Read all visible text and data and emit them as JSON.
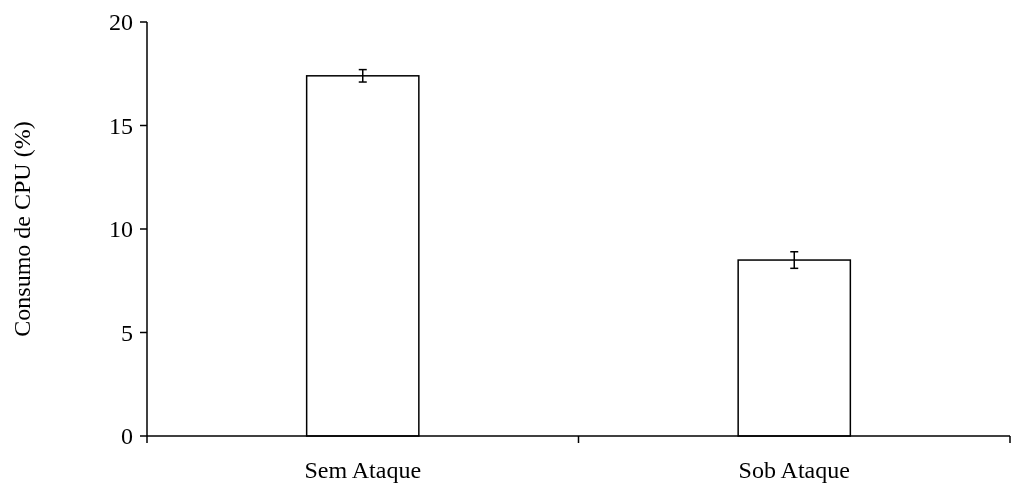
{
  "chart_data": {
    "type": "bar",
    "ylabel": "Consumo de CPU (%)",
    "categories": [
      "Sem Ataque",
      "Sob Ataque"
    ],
    "values": [
      17.4,
      8.5
    ],
    "errors": [
      0.3,
      0.4
    ],
    "color": "#ffffff",
    "ylim": [
      0,
      20
    ],
    "yticks": [
      0,
      5,
      10,
      15,
      20
    ],
    "grid": false
  }
}
